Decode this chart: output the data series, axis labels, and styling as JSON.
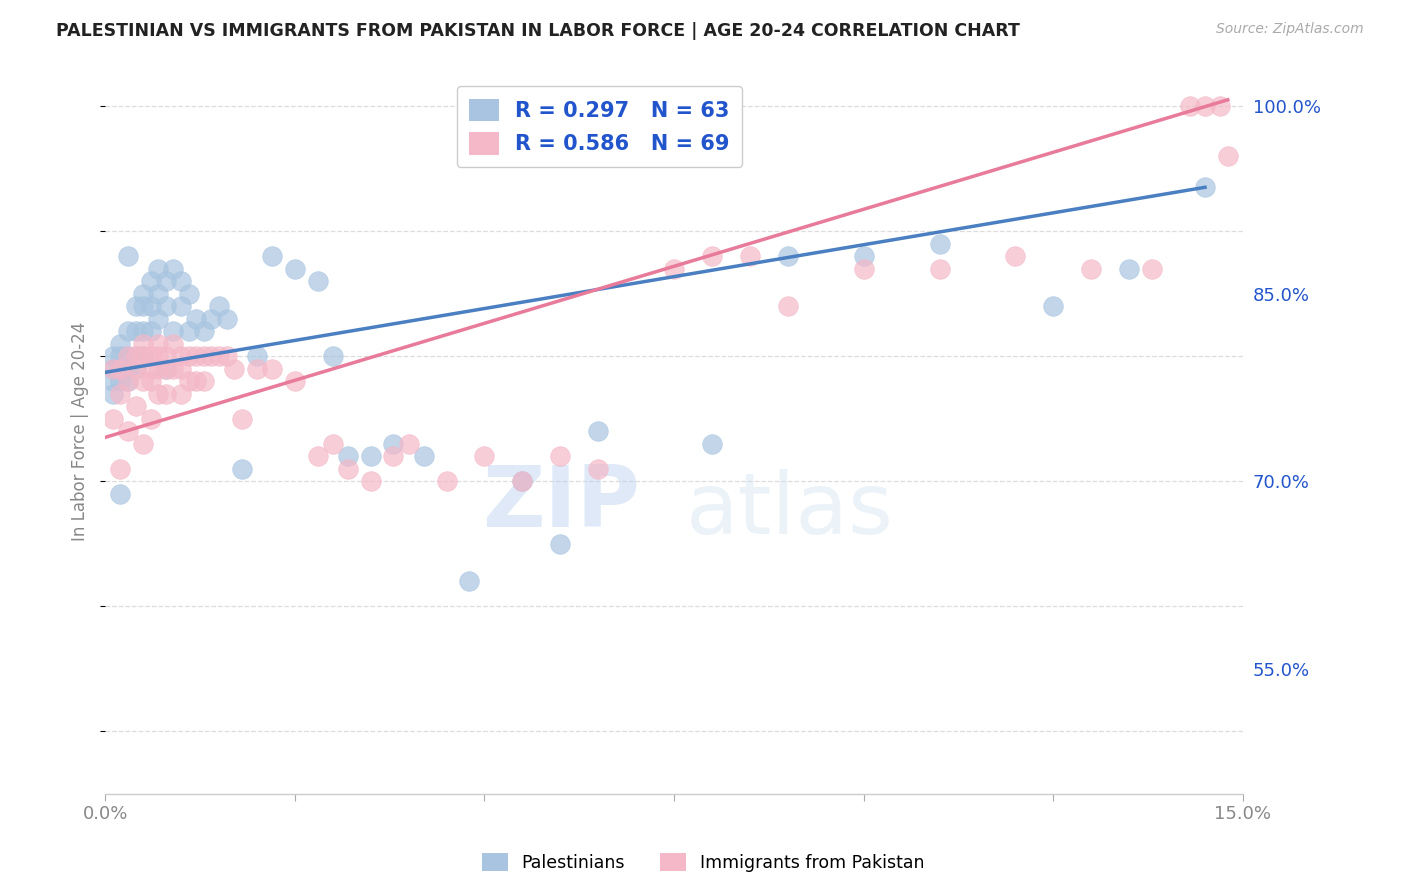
{
  "title": "PALESTINIAN VS IMMIGRANTS FROM PAKISTAN IN LABOR FORCE | AGE 20-24 CORRELATION CHART",
  "source": "Source: ZipAtlas.com",
  "ylabel": "In Labor Force | Age 20-24",
  "xlim": [
    0.0,
    0.15
  ],
  "ylim": [
    0.45,
    1.03
  ],
  "yticks": [
    0.55,
    0.7,
    0.85,
    1.0
  ],
  "ytick_labels": [
    "55.0%",
    "70.0%",
    "85.0%",
    "100.0%"
  ],
  "xticks": [
    0.0,
    0.025,
    0.05,
    0.075,
    0.1,
    0.125,
    0.15
  ],
  "blue_R": 0.297,
  "blue_N": 63,
  "pink_R": 0.586,
  "pink_N": 69,
  "blue_color": "#a8c4e0",
  "pink_color": "#f4b8c8",
  "blue_line_color": "#4a7fc1",
  "pink_line_color": "#e87a9a",
  "legend_text_color": "#2255cc",
  "blue_x": [
    0.001,
    0.001,
    0.001,
    0.001,
    0.002,
    0.002,
    0.002,
    0.002,
    0.002,
    0.003,
    0.003,
    0.003,
    0.003,
    0.003,
    0.004,
    0.004,
    0.004,
    0.004,
    0.005,
    0.005,
    0.005,
    0.005,
    0.006,
    0.006,
    0.006,
    0.007,
    0.007,
    0.007,
    0.008,
    0.008,
    0.008,
    0.009,
    0.009,
    0.01,
    0.01,
    0.011,
    0.011,
    0.012,
    0.013,
    0.014,
    0.015,
    0.016,
    0.018,
    0.02,
    0.022,
    0.025,
    0.028,
    0.03,
    0.032,
    0.035,
    0.038,
    0.042,
    0.048,
    0.055,
    0.06,
    0.065,
    0.08,
    0.09,
    0.1,
    0.11,
    0.125,
    0.135,
    0.145
  ],
  "blue_y": [
    0.8,
    0.79,
    0.78,
    0.77,
    0.81,
    0.8,
    0.79,
    0.78,
    0.69,
    0.88,
    0.82,
    0.8,
    0.79,
    0.78,
    0.84,
    0.82,
    0.8,
    0.79,
    0.85,
    0.84,
    0.82,
    0.8,
    0.86,
    0.84,
    0.82,
    0.87,
    0.85,
    0.83,
    0.86,
    0.84,
    0.79,
    0.87,
    0.82,
    0.86,
    0.84,
    0.85,
    0.82,
    0.83,
    0.82,
    0.83,
    0.84,
    0.83,
    0.71,
    0.8,
    0.88,
    0.87,
    0.86,
    0.8,
    0.72,
    0.72,
    0.73,
    0.72,
    0.62,
    0.7,
    0.65,
    0.74,
    0.73,
    0.88,
    0.88,
    0.89,
    0.84,
    0.87,
    0.935
  ],
  "pink_x": [
    0.001,
    0.001,
    0.002,
    0.002,
    0.002,
    0.003,
    0.003,
    0.003,
    0.004,
    0.004,
    0.004,
    0.005,
    0.005,
    0.005,
    0.005,
    0.006,
    0.006,
    0.006,
    0.006,
    0.007,
    0.007,
    0.007,
    0.007,
    0.008,
    0.008,
    0.008,
    0.009,
    0.009,
    0.01,
    0.01,
    0.01,
    0.011,
    0.011,
    0.012,
    0.012,
    0.013,
    0.013,
    0.014,
    0.015,
    0.016,
    0.017,
    0.018,
    0.02,
    0.022,
    0.025,
    0.028,
    0.03,
    0.032,
    0.035,
    0.038,
    0.04,
    0.045,
    0.05,
    0.055,
    0.06,
    0.065,
    0.075,
    0.08,
    0.085,
    0.09,
    0.1,
    0.11,
    0.12,
    0.13,
    0.138,
    0.143,
    0.145,
    0.147,
    0.148
  ],
  "pink_y": [
    0.79,
    0.75,
    0.79,
    0.77,
    0.71,
    0.8,
    0.78,
    0.74,
    0.8,
    0.79,
    0.76,
    0.81,
    0.8,
    0.78,
    0.73,
    0.8,
    0.79,
    0.78,
    0.75,
    0.81,
    0.8,
    0.79,
    0.77,
    0.8,
    0.79,
    0.77,
    0.81,
    0.79,
    0.8,
    0.79,
    0.77,
    0.8,
    0.78,
    0.8,
    0.78,
    0.8,
    0.78,
    0.8,
    0.8,
    0.8,
    0.79,
    0.75,
    0.79,
    0.79,
    0.78,
    0.72,
    0.73,
    0.71,
    0.7,
    0.72,
    0.73,
    0.7,
    0.72,
    0.7,
    0.72,
    0.71,
    0.87,
    0.88,
    0.88,
    0.84,
    0.87,
    0.87,
    0.88,
    0.87,
    0.87,
    1.0,
    1.0,
    1.0,
    0.96
  ],
  "watermark_zip": "ZIP",
  "watermark_atlas": "atlas",
  "background_color": "#ffffff",
  "grid_color": "#dddddd"
}
